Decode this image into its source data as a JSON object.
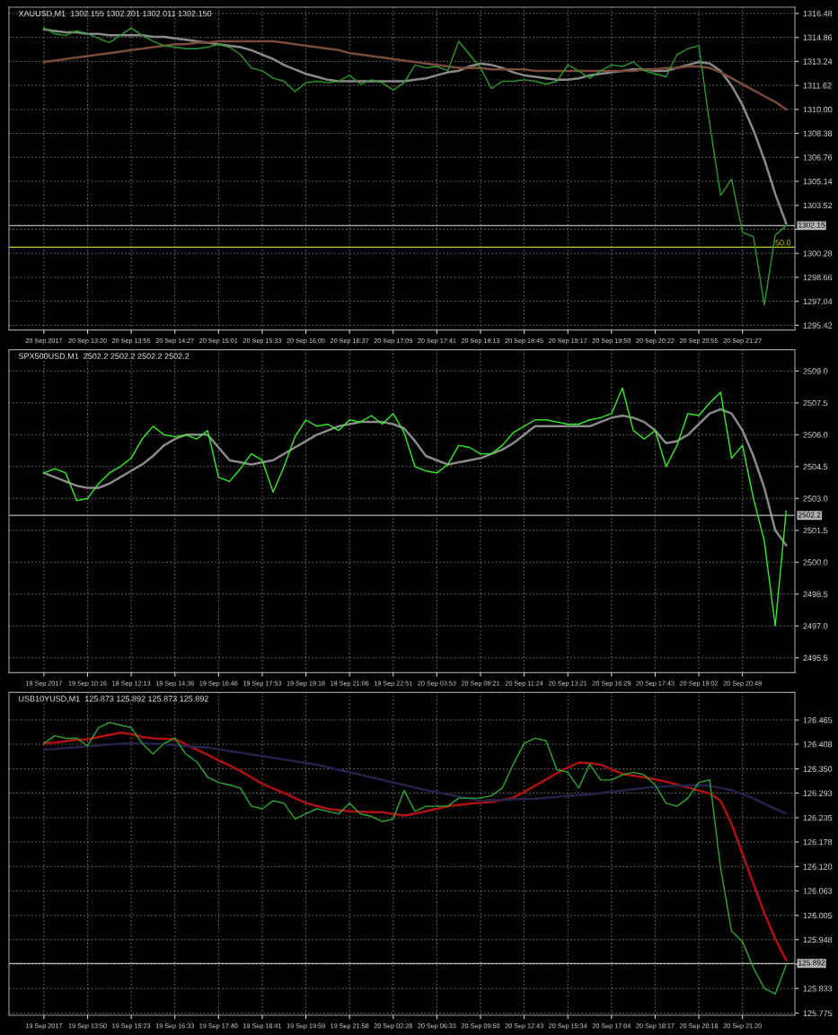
{
  "chart_data": [
    {
      "type": "line",
      "title": "XAUUSD,M1  1302.155 1302.201 1302.011 1302.150",
      "categories": [
        "20 Sep 2017",
        null,
        null,
        null,
        "20 Sep 13:20",
        null,
        null,
        null,
        "20 Sep 13:55",
        null,
        null,
        null,
        "20 Sep 14:27",
        null,
        null,
        null,
        "20 Sep 15:01",
        null,
        null,
        null,
        "20 Sep 15:33",
        null,
        null,
        null,
        "20 Sep 16:05",
        null,
        null,
        null,
        "20 Sep 16:37",
        null,
        null,
        null,
        "20 Sep 17:09",
        null,
        null,
        null,
        "20 Sep 17:41",
        null,
        null,
        null,
        "20 Sep 18:13",
        null,
        null,
        null,
        "20 Sep 18:45",
        null,
        null,
        null,
        "20 Sep 19:17",
        null,
        null,
        null,
        "20 Sep 19:50",
        null,
        null,
        null,
        "20 Sep 20:22",
        null,
        null,
        null,
        "20 Sep 20:55",
        null,
        null,
        null,
        "20 Sep 21:27",
        null,
        null,
        null,
        null
      ],
      "series": [
        {
          "color": "#2a9a2a",
          "values": [
            1315.5,
            1315.1,
            1315.0,
            1315.3,
            1315.1,
            1314.8,
            1314.5,
            1315.0,
            1315.5,
            1315.0,
            1314.6,
            1314.3,
            1314.2,
            1314.1,
            1314.1,
            1314.2,
            1314.4,
            1314.2,
            1313.7,
            1312.8,
            1312.6,
            1312.1,
            1311.9,
            1311.2,
            1311.8,
            1311.9,
            1311.8,
            1311.9,
            1312.3,
            1311.7,
            1312.0,
            1311.8,
            1311.3,
            1311.8,
            1313.0,
            1312.8,
            1312.9,
            1312.6,
            1314.6,
            1313.7,
            1312.8,
            1311.4,
            1311.9,
            1311.9,
            1312.0,
            1311.9,
            1311.7,
            1311.9,
            1313.0,
            1312.6,
            1312.1,
            1312.6,
            1313.0,
            1312.9,
            1313.2,
            1312.6,
            1312.4,
            1312.2,
            1313.7,
            1314.1,
            1314.3,
            1309.0,
            1304.2,
            1305.3,
            1301.7,
            1301.4,
            1296.8,
            1301.5,
            1302.15
          ]
        },
        {
          "color": "#8a8a8a",
          "values": [
            1315.4,
            1315.3,
            1315.2,
            1315.2,
            1315.1,
            1315.1,
            1315.0,
            1315.0,
            1315.0,
            1315.0,
            1314.9,
            1314.9,
            1314.8,
            1314.7,
            1314.6,
            1314.5,
            1314.4,
            1314.3,
            1314.2,
            1314.0,
            1313.7,
            1313.4,
            1313.0,
            1312.7,
            1312.4,
            1312.2,
            1312.0,
            1311.9,
            1311.9,
            1311.9,
            1311.9,
            1311.9,
            1311.9,
            1311.9,
            1312.0,
            1312.1,
            1312.3,
            1312.5,
            1312.6,
            1312.9,
            1313.1,
            1313.0,
            1312.8,
            1312.5,
            1312.3,
            1312.2,
            1312.1,
            1312.0,
            1312.0,
            1312.1,
            1312.3,
            1312.4,
            1312.5,
            1312.6,
            1312.7,
            1312.7,
            1312.6,
            1312.6,
            1312.8,
            1313.0,
            1313.2,
            1313.1,
            1312.6,
            1311.6,
            1310.3,
            1308.6,
            1306.6,
            1304.3,
            1302.3
          ]
        },
        {
          "color": "#7a4a3a",
          "values": [
            1313.2,
            1313.3,
            1313.4,
            1313.5,
            1313.6,
            1313.7,
            1313.8,
            1313.9,
            1314.0,
            1314.1,
            1314.2,
            1314.3,
            1314.4,
            1314.4,
            1314.5,
            1314.5,
            1314.6,
            1314.6,
            1314.6,
            1314.6,
            1314.6,
            1314.6,
            1314.5,
            1314.4,
            1314.3,
            1314.2,
            1314.1,
            1314.0,
            1313.8,
            1313.7,
            1313.6,
            1313.5,
            1313.4,
            1313.3,
            1313.2,
            1313.1,
            1313.0,
            1312.9,
            1312.8,
            1312.8,
            1312.8,
            1312.7,
            1312.7,
            1312.7,
            1312.7,
            1312.6,
            1312.6,
            1312.6,
            1312.6,
            1312.6,
            1312.6,
            1312.6,
            1312.6,
            1312.6,
            1312.6,
            1312.7,
            1312.7,
            1312.8,
            1312.8,
            1312.9,
            1312.9,
            1312.8,
            1312.5,
            1312.1,
            1311.7,
            1311.3,
            1310.9,
            1310.5,
            1310.0
          ]
        }
      ],
      "ylim": [
        1295.1,
        1316.9
      ],
      "yticks": [
        {
          "value": 1316.48,
          "label": "1316.48"
        },
        {
          "value": 1314.86,
          "label": "1314.86"
        },
        {
          "value": 1313.24,
          "label": "1313.24"
        },
        {
          "value": 1311.62,
          "label": "1311.62"
        },
        {
          "value": 1310.0,
          "label": "1310.00"
        },
        {
          "value": 1308.38,
          "label": "1308.38"
        },
        {
          "value": 1306.76,
          "label": "1306.76"
        },
        {
          "value": 1305.14,
          "label": "1305.14"
        },
        {
          "value": 1303.52,
          "label": "1303.52"
        },
        {
          "value": 1301.9,
          "label": null
        },
        {
          "value": 1300.28,
          "label": "1300.28"
        },
        {
          "value": 1298.66,
          "label": "1298.66"
        },
        {
          "value": 1297.04,
          "label": "1297.04"
        },
        {
          "value": 1295.42,
          "label": "1295.42"
        }
      ],
      "ref_lines": [
        {
          "axis": "y",
          "value": 1302.15,
          "label": "1302.15",
          "color": "#b4b4b4"
        },
        {
          "axis": "y",
          "value": 1300.7,
          "color": "#c8c832"
        }
      ],
      "annotations": [
        {
          "text": "50.0",
          "y": 1300.7
        }
      ],
      "grid": true
    },
    {
      "type": "line",
      "title": "SPX500USD,M1  2502.2 2502.2 2502.2 2502.2",
      "categories": [
        "19 Sep 2017",
        null,
        null,
        null,
        "19 Sep 10:16",
        null,
        null,
        null,
        "19 Sep 12:13",
        null,
        null,
        null,
        "19 Sep 14:36",
        null,
        null,
        null,
        "19 Sep 16:46",
        null,
        null,
        null,
        "19 Sep 17:53",
        null,
        null,
        null,
        "19 Sep 19:18",
        null,
        null,
        null,
        "19 Sep 21:06",
        null,
        null,
        null,
        "19 Sep 22:51",
        null,
        null,
        null,
        "20 Sep 03:53",
        null,
        null,
        null,
        "20 Sep 08:21",
        null,
        null,
        null,
        "20 Sep 11:24",
        null,
        null,
        null,
        "20 Sep 13:21",
        null,
        null,
        null,
        "20 Sep 16:29",
        null,
        null,
        null,
        "20 Sep 17:43",
        null,
        null,
        null,
        "20 Sep 19:02",
        null,
        null,
        null,
        "20 Sep 20:49",
        null,
        null,
        null,
        null
      ],
      "series": [
        {
          "color": "#33ee22",
          "values": [
            2504.2,
            2504.4,
            2504.2,
            2502.9,
            2503.0,
            2503.7,
            2504.2,
            2504.5,
            2504.9,
            2505.8,
            2506.4,
            2506.0,
            2505.9,
            2506.0,
            2505.8,
            2506.2,
            2504.0,
            2503.8,
            2504.4,
            2505.1,
            2504.8,
            2503.3,
            2504.5,
            2505.9,
            2506.7,
            2506.4,
            2506.5,
            2506.2,
            2506.7,
            2506.6,
            2506.9,
            2506.5,
            2507.0,
            2506.1,
            2504.5,
            2504.3,
            2504.2,
            2504.6,
            2505.5,
            2505.4,
            2505.1,
            2505.1,
            2505.5,
            2506.1,
            2506.4,
            2506.7,
            2506.7,
            2506.6,
            2506.5,
            2506.5,
            2506.7,
            2506.8,
            2507.0,
            2508.2,
            2506.2,
            2505.8,
            2506.2,
            2504.5,
            2505.5,
            2507.0,
            2506.9,
            2507.5,
            2508.0,
            2504.9,
            2505.5,
            2503.0,
            2501.0,
            2497.0,
            2502.4
          ]
        },
        {
          "color": "#8a8a8a",
          "values": [
            2504.2,
            2504.0,
            2503.8,
            2503.6,
            2503.5,
            2503.5,
            2503.7,
            2504.0,
            2504.3,
            2504.6,
            2505.0,
            2505.5,
            2505.8,
            2506.0,
            2506.0,
            2506.0,
            2505.4,
            2504.8,
            2504.7,
            2504.6,
            2504.7,
            2504.8,
            2505.1,
            2505.4,
            2505.7,
            2506.0,
            2506.2,
            2506.4,
            2506.5,
            2506.6,
            2506.6,
            2506.6,
            2506.5,
            2506.3,
            2505.7,
            2505.0,
            2504.8,
            2504.6,
            2504.7,
            2504.8,
            2504.9,
            2505.1,
            2505.3,
            2505.6,
            2506.0,
            2506.4,
            2506.4,
            2506.4,
            2506.4,
            2506.4,
            2506.4,
            2506.6,
            2506.8,
            2506.9,
            2506.8,
            2506.6,
            2506.2,
            2505.6,
            2505.7,
            2506.0,
            2506.5,
            2507.0,
            2507.2,
            2507.0,
            2506.2,
            2505.0,
            2503.5,
            2501.5,
            2500.8
          ]
        }
      ],
      "ylim": [
        2494.8,
        2510.0
      ],
      "yticks": [
        {
          "value": 2509.0,
          "label": "2509.0"
        },
        {
          "value": 2507.5,
          "label": "2507.5"
        },
        {
          "value": 2506.0,
          "label": "2506.0"
        },
        {
          "value": 2504.5,
          "label": "2504.5"
        },
        {
          "value": 2503.0,
          "label": "2503.0"
        },
        {
          "value": 2501.5,
          "label": "2501.5"
        },
        {
          "value": 2500.0,
          "label": "2500.0"
        },
        {
          "value": 2498.5,
          "label": "2498.5"
        },
        {
          "value": 2497.0,
          "label": "2497.0"
        },
        {
          "value": 2495.5,
          "label": "2495.5"
        }
      ],
      "ref_lines": [
        {
          "axis": "y",
          "value": 2502.2,
          "label": "2502.2",
          "color": "#b4b4b4"
        }
      ],
      "grid": true
    },
    {
      "type": "line",
      "title": "USB10YUSD,M1  125.873 125.892 125.873 125.892",
      "categories": [
        "19 Sep 2017",
        null,
        null,
        null,
        "19 Sep 13:50",
        null,
        null,
        null,
        "19 Sep 15:23",
        null,
        null,
        null,
        "19 Sep 16:33",
        null,
        null,
        null,
        "19 Sep 17:40",
        null,
        null,
        null,
        "19 Sep 18:41",
        null,
        null,
        null,
        "19 Sep 19:59",
        null,
        null,
        null,
        "19 Sep 21:58",
        null,
        null,
        null,
        "20 Sep 02:28",
        null,
        null,
        null,
        "20 Sep 06:33",
        null,
        null,
        null,
        "20 Sep 09:50",
        null,
        null,
        null,
        "20 Sep 12:43",
        null,
        null,
        null,
        "20 Sep 15:34",
        null,
        null,
        null,
        "20 Sep 17:04",
        null,
        null,
        null,
        "20 Sep 18:17",
        null,
        null,
        null,
        "20 Sep 20:18",
        null,
        null,
        null,
        "20 Sep 21:20",
        null,
        null,
        null,
        null
      ],
      "series": [
        {
          "color": "#2ea82e",
          "values": [
            126.41,
            126.428,
            126.422,
            126.422,
            126.404,
            126.447,
            126.459,
            126.453,
            126.447,
            126.41,
            126.385,
            126.41,
            126.422,
            126.385,
            126.367,
            126.33,
            126.318,
            126.312,
            126.305,
            126.262,
            126.256,
            126.275,
            126.269,
            126.232,
            126.244,
            126.256,
            126.25,
            126.244,
            126.269,
            126.244,
            126.238,
            126.226,
            126.232,
            126.299,
            126.25,
            126.262,
            126.262,
            126.262,
            126.281,
            126.281,
            126.281,
            126.287,
            126.305,
            126.361,
            126.41,
            126.422,
            126.416,
            126.348,
            126.342,
            126.305,
            126.361,
            126.324,
            126.324,
            126.336,
            126.342,
            126.336,
            126.312,
            126.269,
            126.262,
            126.281,
            126.318,
            126.324,
            126.115,
            125.968,
            125.943,
            125.882,
            125.833,
            125.82,
            125.888
          ]
        },
        {
          "color": "#b01010",
          "values": [
            126.41,
            126.412,
            126.415,
            126.418,
            126.42,
            126.425,
            126.43,
            126.435,
            126.432,
            126.425,
            126.422,
            126.421,
            126.42,
            126.408,
            126.395,
            126.383,
            126.37,
            126.358,
            126.345,
            126.33,
            126.315,
            126.304,
            126.293,
            126.281,
            126.27,
            126.263,
            126.256,
            126.253,
            126.25,
            126.249,
            126.248,
            126.248,
            126.244,
            126.24,
            126.245,
            126.25,
            126.256,
            126.262,
            126.265,
            126.268,
            126.27,
            126.272,
            126.277,
            126.282,
            126.296,
            126.31,
            126.325,
            126.34,
            126.353,
            126.365,
            126.363,
            126.36,
            126.349,
            126.338,
            126.334,
            126.33,
            126.325,
            126.32,
            126.313,
            126.306,
            126.299,
            126.292,
            126.275,
            126.22,
            126.15,
            126.08,
            126.01,
            125.95,
            125.9
          ]
        },
        {
          "color": "#22224a",
          "values": [
            126.395,
            126.397,
            126.399,
            126.401,
            126.403,
            126.405,
            126.407,
            126.409,
            126.41,
            126.41,
            126.409,
            126.408,
            126.406,
            126.404,
            126.402,
            126.4,
            126.396,
            126.392,
            126.388,
            126.384,
            126.38,
            126.376,
            126.372,
            126.368,
            126.364,
            126.36,
            126.354,
            126.348,
            126.342,
            126.336,
            126.33,
            126.324,
            126.318,
            126.312,
            126.306,
            126.3,
            126.295,
            126.29,
            126.285,
            126.28,
            126.275,
            126.276,
            126.277,
            126.278,
            126.279,
            126.28,
            126.282,
            126.284,
            126.286,
            126.288,
            126.29,
            126.293,
            126.296,
            126.299,
            126.302,
            126.305,
            126.307,
            126.309,
            126.31,
            126.311,
            126.312,
            126.31,
            126.305,
            126.3,
            126.29,
            126.28,
            126.268,
            126.256,
            126.245
          ]
        }
      ],
      "ylim": [
        125.77,
        126.53
      ],
      "yticks": [
        {
          "value": 126.465,
          "label": "126.465"
        },
        {
          "value": 126.408,
          "label": "126.408"
        },
        {
          "value": 126.35,
          "label": "126.350"
        },
        {
          "value": 126.293,
          "label": "126.293"
        },
        {
          "value": 126.235,
          "label": "126.235"
        },
        {
          "value": 126.178,
          "label": "126.178"
        },
        {
          "value": 126.12,
          "label": "126.120"
        },
        {
          "value": 126.063,
          "label": "126.063"
        },
        {
          "value": 126.005,
          "label": "126.005"
        },
        {
          "value": 125.948,
          "label": "125.948"
        },
        {
          "value": 125.89,
          "label": null
        },
        {
          "value": 125.833,
          "label": "125.833"
        },
        {
          "value": 125.775,
          "label": "125.775"
        }
      ],
      "ref_lines": [
        {
          "axis": "y",
          "value": 125.892,
          "label": "125.892",
          "color": "#b4b4b4"
        }
      ],
      "grid": true
    }
  ]
}
